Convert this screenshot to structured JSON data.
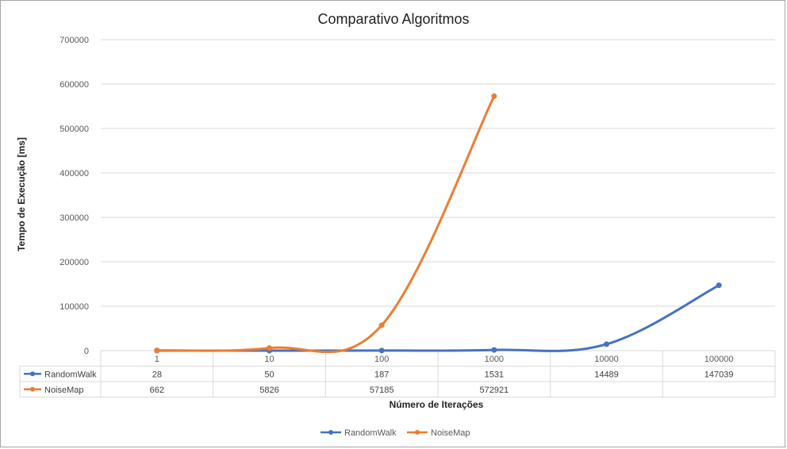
{
  "chart_data": {
    "type": "line",
    "title": "Comparativo Algoritmos",
    "xlabel": "Número de Iterações",
    "ylabel": "Tempo de Execução [ms]",
    "categories": [
      "1",
      "10",
      "100",
      "1000",
      "10000",
      "100000"
    ],
    "y_ticks": [
      "0",
      "100000",
      "200000",
      "300000",
      "400000",
      "500000",
      "600000",
      "700000"
    ],
    "ylim": [
      0,
      700000
    ],
    "grid": true,
    "legend_position": "bottom",
    "series": [
      {
        "name": "RandomWalk",
        "color": "#4472C4",
        "values": [
          28,
          50,
          187,
          1531,
          14489,
          147039
        ],
        "table": [
          "28",
          "50",
          "187",
          "1531",
          "14489",
          "147039"
        ]
      },
      {
        "name": "NoiseMap",
        "color": "#ED7D31",
        "values": [
          662,
          5826,
          57185,
          572921,
          null,
          null
        ],
        "table": [
          "662",
          "5826",
          "57185",
          "572921",
          "",
          ""
        ]
      }
    ]
  }
}
